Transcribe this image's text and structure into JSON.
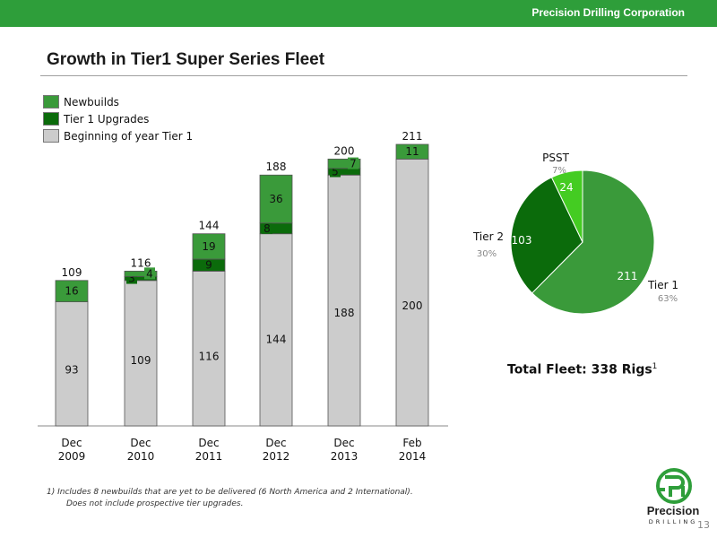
{
  "header": {
    "company": "Precision Drilling Corporation",
    "title": "Growth in Tier1 Super Series Fleet"
  },
  "legend": [
    {
      "label": "Newbuilds",
      "color": "#3a9a3a"
    },
    {
      "label": "Tier 1 Upgrades",
      "color": "#0b6b0b"
    },
    {
      "label": "Beginning of year Tier 1",
      "color": "#cccccc"
    }
  ],
  "chart_data": [
    {
      "type": "bar",
      "stacked": true,
      "categories": [
        [
          "Dec",
          "2009"
        ],
        [
          "Dec",
          "2010"
        ],
        [
          "Dec",
          "2011"
        ],
        [
          "Dec",
          "2012"
        ],
        [
          "Dec",
          "2013"
        ],
        [
          "Feb",
          "2014"
        ]
      ],
      "series": [
        {
          "name": "Beginning of year Tier 1",
          "color": "#cccccc",
          "values": [
            93,
            109,
            116,
            144,
            188,
            200
          ]
        },
        {
          "name": "Tier 1 Upgrades",
          "color": "#0b6b0b",
          "values": [
            0,
            3,
            9,
            8,
            5,
            0
          ]
        },
        {
          "name": "Newbuilds",
          "color": "#3a9a3a",
          "values": [
            16,
            4,
            19,
            36,
            7,
            11
          ]
        }
      ],
      "totals": [
        109,
        116,
        144,
        188,
        200,
        211
      ],
      "ylim": [
        0,
        211
      ]
    },
    {
      "type": "pie",
      "slices": [
        {
          "label": "Tier 1",
          "value": 211,
          "percent": "63%",
          "color": "#3a9a3a"
        },
        {
          "label": "Tier 2",
          "value": 103,
          "percent": "30%",
          "color": "#0b6b0b"
        },
        {
          "label": "PSST",
          "value": 24,
          "percent": "7%",
          "color": "#44cc22"
        }
      ]
    }
  ],
  "total_fleet": {
    "text": "Total Fleet: 338 Rigs",
    "sup": "1"
  },
  "footnote": {
    "line1": "1)   Includes 8 newbuilds that are yet to be delivered (6 North America and 2 International).",
    "line2": "Does not include prospective tier upgrades."
  },
  "logo": {
    "word": "Precision",
    "sub": "DRILLING"
  },
  "page_number": "13"
}
